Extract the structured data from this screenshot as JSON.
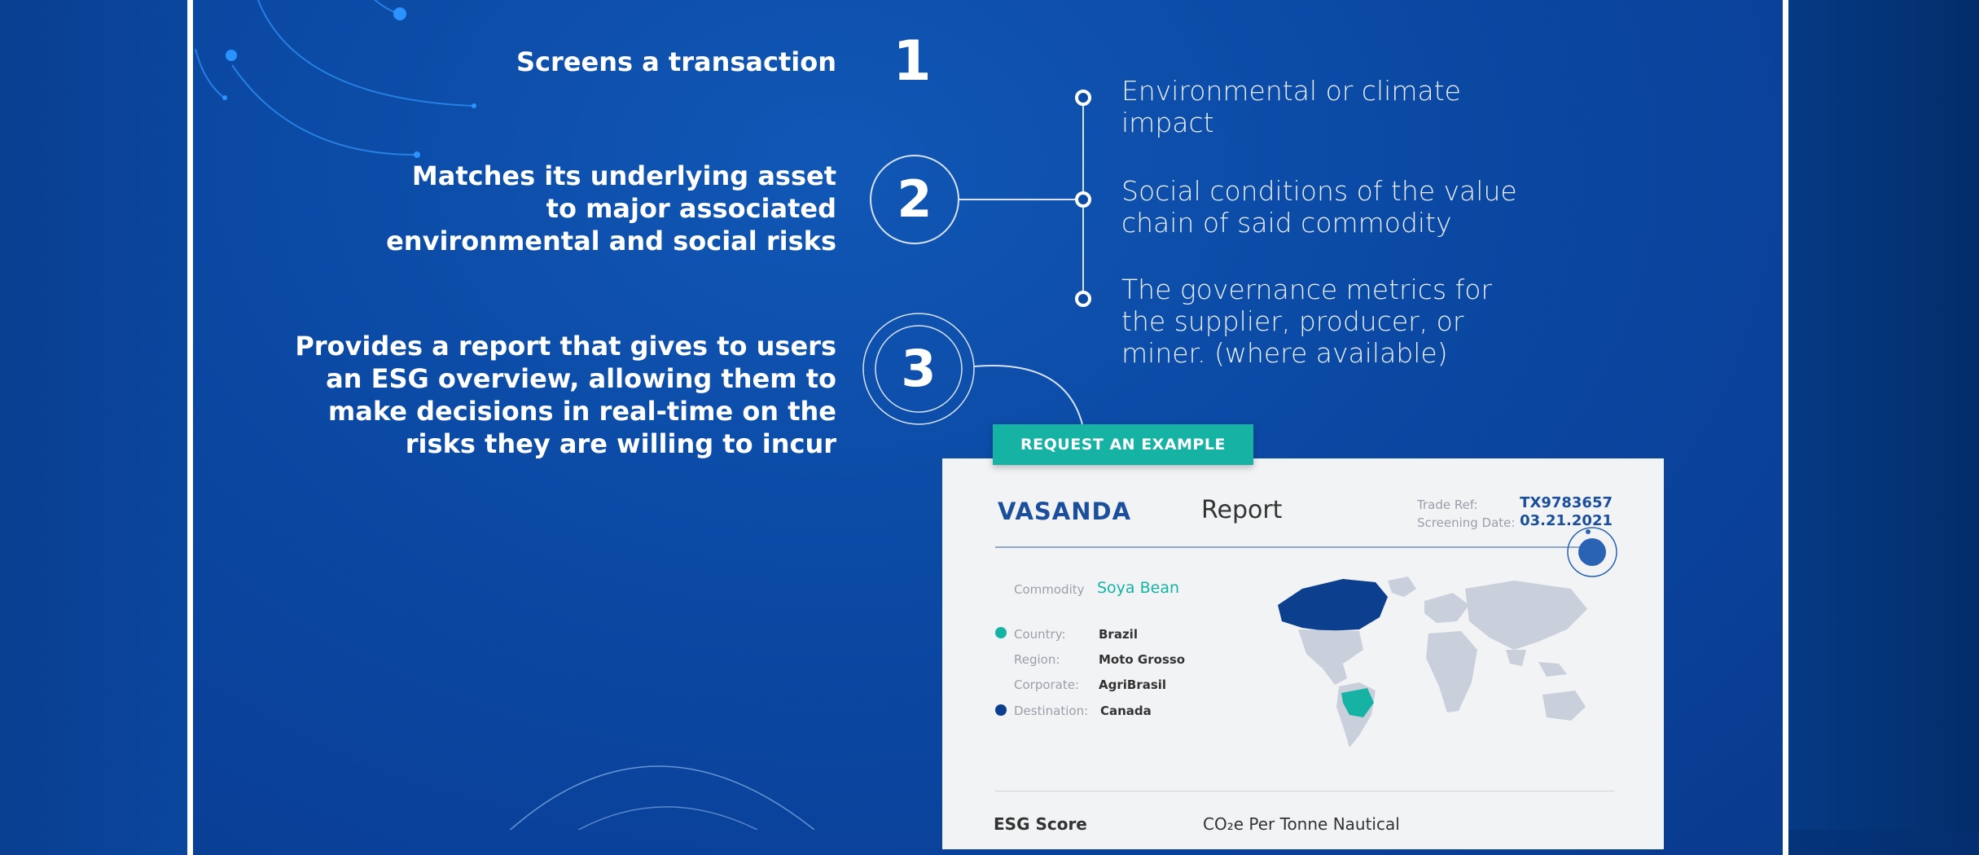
{
  "steps": [
    {
      "num": "1",
      "text_lines": [
        "Screens a transaction"
      ]
    },
    {
      "num": "2",
      "text_lines": [
        "Matches its underlying asset",
        "to major associated",
        "environmental and social risks"
      ]
    },
    {
      "num": "3",
      "text_lines": [
        "Provides a report that gives to users",
        "an ESG overview, allowing them to",
        "make decisions in real-time on the",
        "risks they are willing to incur"
      ]
    }
  ],
  "risks": [
    {
      "lines": [
        "Environmental or climate",
        "impact"
      ]
    },
    {
      "lines": [
        "Social conditions of the value",
        "chain of said commodity"
      ]
    },
    {
      "lines": [
        "The governance metrics for",
        "the supplier, producer, or",
        "miner. (where available)"
      ]
    }
  ],
  "cta": {
    "label": "REQUEST AN EXAMPLE"
  },
  "report": {
    "brand": "VASANDA",
    "title": "Report",
    "trade_ref_label": "Trade Ref:",
    "screening_date_label": "Screening Date:",
    "trade_ref": "TX9783657",
    "screening_date": "03.21.2021",
    "commodity_label": "Commodity",
    "commodity": "Soya Bean",
    "fields": [
      {
        "label": "Country:",
        "value": "Brazil"
      },
      {
        "label": "Region:",
        "value": "Moto Grosso"
      },
      {
        "label": "Corporate:",
        "value": "AgriBrasil"
      },
      {
        "label": "Destination:",
        "value": "Canada"
      }
    ],
    "esg_score_label": "ESG Score",
    "co2_label": "CO₂e Per Tonne Nautical"
  },
  "colors": {
    "accent_teal": "#16b3a4",
    "brand_blue": "#1b4f9c",
    "origin_dot": "#16b3a4",
    "destination_dot": "#0d3f8f"
  }
}
